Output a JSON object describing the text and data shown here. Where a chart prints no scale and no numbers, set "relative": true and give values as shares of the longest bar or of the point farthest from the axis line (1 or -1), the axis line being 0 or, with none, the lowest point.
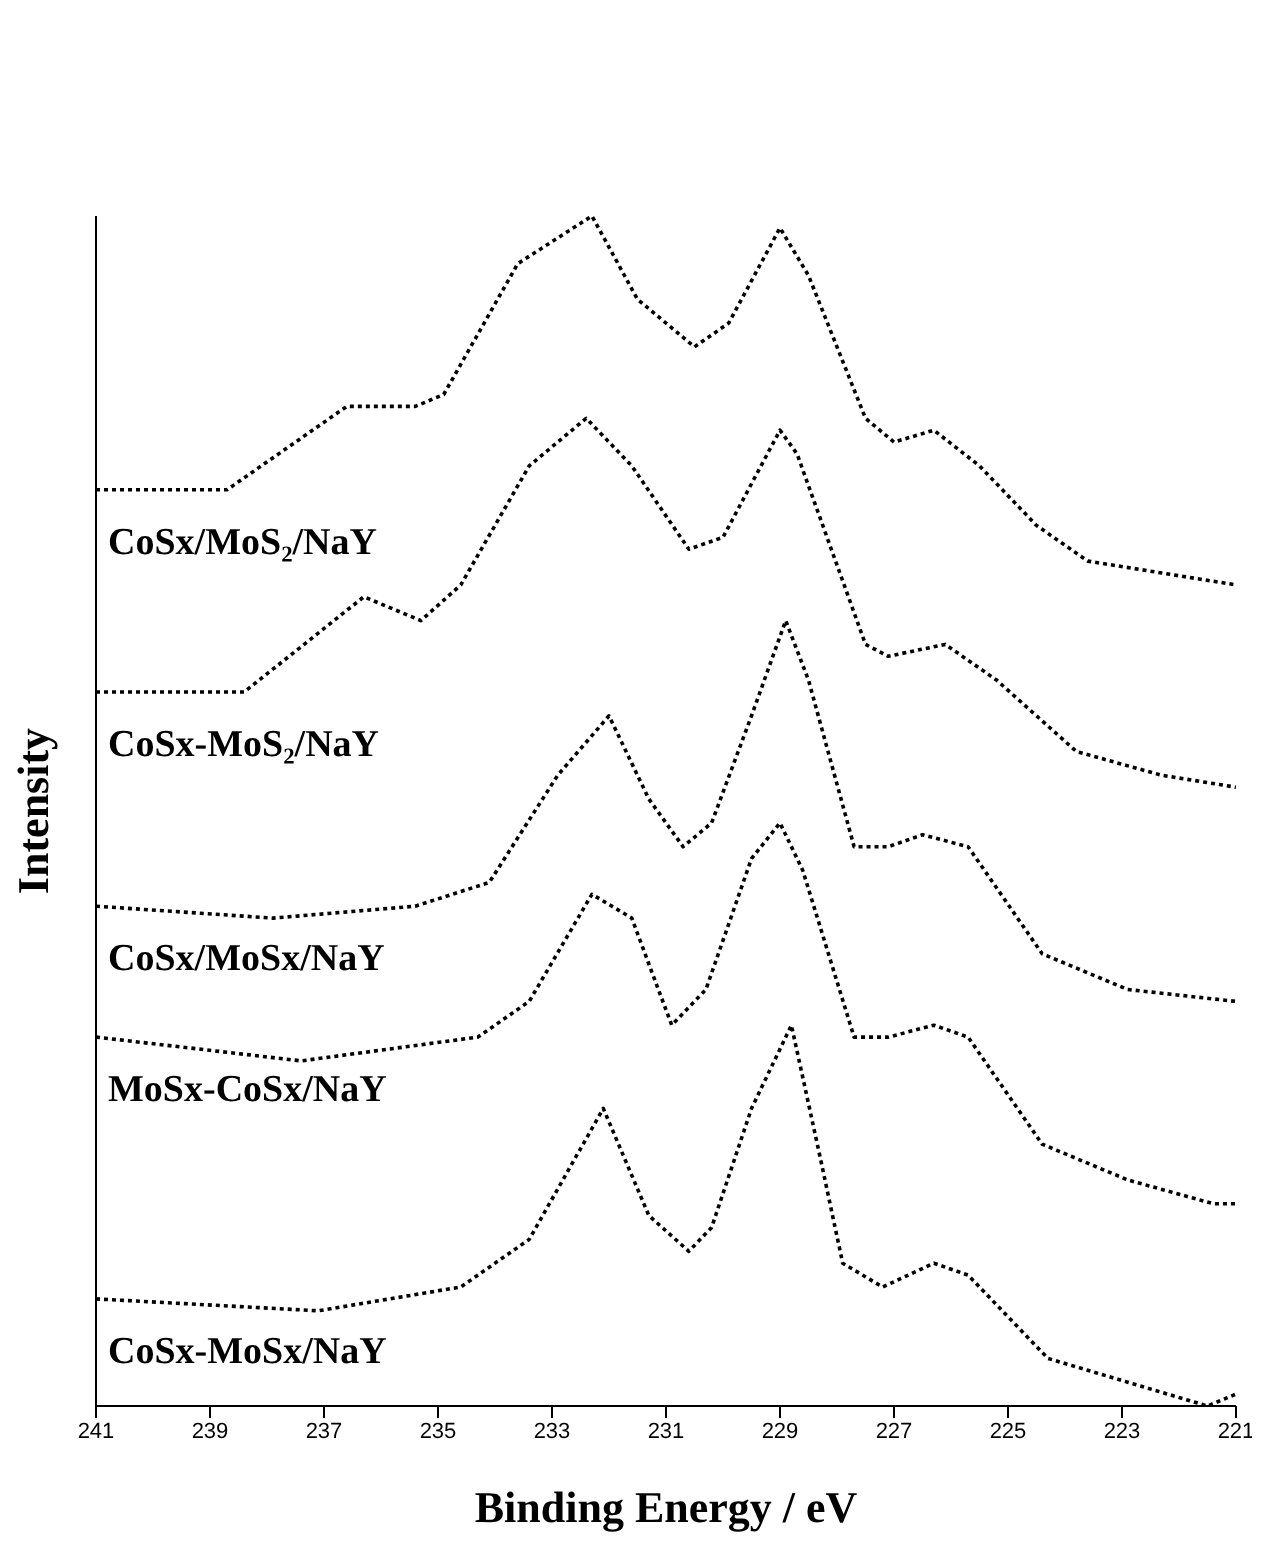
{
  "chart_data": {
    "type": "line",
    "relative": true,
    "xlabel": "Binding Energy / eV",
    "ylabel": "Intensity",
    "xlim": [
      241,
      221
    ],
    "xticks": [
      241,
      239,
      237,
      235,
      233,
      231,
      229,
      227,
      225,
      223,
      221
    ],
    "marker": "none",
    "line_style": "dotted",
    "legend": false,
    "series": [
      {
        "name": "CoSx/MoS₂/NaY",
        "color": "#000000",
        "x": [
          241,
          238.7,
          236.6,
          235.4,
          234.9,
          233.6,
          232.3,
          231.5,
          230.5,
          229.9,
          229.0,
          228.5,
          227.5,
          227.0,
          226.3,
          225.5,
          224.5,
          223.6,
          222.3,
          221
        ],
        "values": [
          0.77,
          0.77,
          0.84,
          0.84,
          0.85,
          0.96,
          1.0,
          0.93,
          0.89,
          0.91,
          0.99,
          0.95,
          0.83,
          0.81,
          0.82,
          0.79,
          0.74,
          0.71,
          0.7,
          0.69
        ]
      },
      {
        "name": "CoSx-MoS₂/NaY",
        "color": "#000000",
        "x": [
          241,
          238.4,
          236.3,
          235.3,
          234.6,
          233.4,
          232.4,
          231.6,
          230.6,
          230.0,
          229.0,
          228.7,
          227.5,
          227.1,
          226.1,
          225.2,
          223.8,
          222.3,
          221
        ],
        "values": [
          0.6,
          0.6,
          0.68,
          0.66,
          0.69,
          0.79,
          0.83,
          0.79,
          0.72,
          0.73,
          0.82,
          0.8,
          0.64,
          0.63,
          0.64,
          0.61,
          0.55,
          0.53,
          0.52
        ]
      },
      {
        "name": "CoSx/MoSx/NaY",
        "color": "#000000",
        "x": [
          241,
          237.9,
          235.4,
          234.1,
          232.9,
          232.0,
          231.3,
          230.7,
          230.2,
          229.5,
          228.9,
          228.5,
          227.7,
          227.1,
          226.5,
          225.7,
          224.4,
          222.9,
          221
        ],
        "values": [
          0.42,
          0.41,
          0.42,
          0.44,
          0.53,
          0.58,
          0.51,
          0.47,
          0.49,
          0.58,
          0.66,
          0.61,
          0.47,
          0.47,
          0.48,
          0.47,
          0.38,
          0.35,
          0.34
        ]
      },
      {
        "name": "MoSx-CoSx/NaY",
        "color": "#000000",
        "x": [
          241,
          237.4,
          234.3,
          233.4,
          232.3,
          231.6,
          230.9,
          230.3,
          229.5,
          229.0,
          228.6,
          227.7,
          227.1,
          226.3,
          225.7,
          224.4,
          222.9,
          221.4,
          221
        ],
        "values": [
          0.31,
          0.29,
          0.31,
          0.34,
          0.43,
          0.41,
          0.32,
          0.35,
          0.46,
          0.49,
          0.45,
          0.31,
          0.31,
          0.32,
          0.31,
          0.22,
          0.19,
          0.17,
          0.17
        ]
      },
      {
        "name": "CoSx-MoSx/NaY",
        "color": "#000000",
        "x": [
          241,
          237.1,
          234.6,
          233.4,
          232.1,
          231.3,
          230.6,
          230.2,
          229.5,
          228.8,
          228.3,
          227.9,
          227.2,
          226.3,
          225.7,
          224.3,
          222.9,
          221.5,
          221
        ],
        "values": [
          0.09,
          0.08,
          0.1,
          0.14,
          0.25,
          0.16,
          0.13,
          0.15,
          0.25,
          0.32,
          0.21,
          0.12,
          0.1,
          0.12,
          0.11,
          0.04,
          0.02,
          0.0,
          0.01
        ]
      }
    ]
  }
}
